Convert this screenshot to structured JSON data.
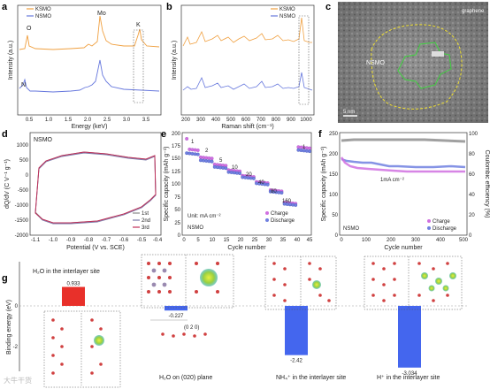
{
  "panels": {
    "a": {
      "label": "a",
      "legend": [
        "KSMO",
        "NSMO"
      ],
      "xlabel": "Energy (keV)",
      "ylabel": "Intensity (a.u.)",
      "xticks": [
        "0.5",
        "1.0",
        "1.5",
        "2.0",
        "2.5",
        "3.0",
        "3.5"
      ],
      "peaks": {
        "O": "O",
        "Mo": "Mo",
        "K": "K",
        "N": "N"
      },
      "colors": {
        "KSMO": "#f0a040",
        "NSMO": "#6677dd"
      }
    },
    "b": {
      "label": "b",
      "legend": [
        "KSMO",
        "NSMO"
      ],
      "xlabel": "Raman shift (cm⁻¹)",
      "ylabel": "Intensity (a.u.)",
      "xticks": [
        "200",
        "300",
        "400",
        "500",
        "600",
        "700",
        "800",
        "900",
        "1000"
      ]
    },
    "c": {
      "label": "c",
      "tag": "graphene",
      "region": "NSMO",
      "scalebar": "5 nm"
    },
    "d": {
      "label": "d",
      "title": "NSMO",
      "xlabel": "Potential (V vs. SCE)",
      "ylabel": "dQ/dV (C V⁻¹ g⁻¹)",
      "xticks": [
        "-1.1",
        "-1.0",
        "-0.9",
        "-0.8",
        "-0.7",
        "-0.6",
        "-0.5",
        "-0.4"
      ],
      "yticks": [
        "1000",
        "500",
        "0",
        "-500",
        "-1000",
        "-1500",
        "-2000"
      ],
      "legend": [
        "1st",
        "2nd",
        "3rd"
      ]
    },
    "e": {
      "label": "e",
      "xlabel": "Cycle number",
      "ylabel": "Specific capacity (mAh g⁻¹)",
      "unit_note": "Unit: mA cm⁻²",
      "name": "NSMO",
      "xticks": [
        "0",
        "5",
        "10",
        "15",
        "20",
        "25",
        "30",
        "35",
        "40",
        "45"
      ],
      "yticks": [
        "0",
        "25",
        "50",
        "75",
        "100",
        "125",
        "150",
        "175",
        "200"
      ],
      "legend": [
        "Charge",
        "Discharge"
      ],
      "rate_labels": [
        "1",
        "2",
        "5",
        "10",
        "20",
        "40",
        "80",
        "160",
        "1"
      ]
    },
    "f": {
      "label": "f",
      "xlabel": "Cycle number",
      "ylabel_left": "Specific capacity (mAh g⁻¹)",
      "ylabel_right": "Coulombic efficiency (%)",
      "rate_note": "1mA cm⁻²",
      "name": "NSMO",
      "xticks": [
        "0",
        "100",
        "200",
        "300",
        "400",
        "500"
      ],
      "yticks_left": [
        "0",
        "50",
        "100",
        "150",
        "200",
        "250"
      ],
      "yticks_right": [
        "0",
        "20",
        "40",
        "60",
        "80",
        "100"
      ],
      "legend": [
        "Charge",
        "Discharge"
      ]
    },
    "g": {
      "label": "g",
      "ylabel": "Binding energy (eV)",
      "yticks": [
        "0",
        "-2"
      ],
      "bars": [
        {
          "label": "H₂O in the interlayer site",
          "value": 0.933,
          "value_text": "0.933",
          "color": "#e8302a"
        },
        {
          "label": "H₂O on (020) plane",
          "value": -0.227,
          "value_text": "-0.227",
          "color": "#4466ee"
        },
        {
          "label": "NH₄⁺ in the interlayer site",
          "value": -2.42,
          "value_text": "-2.42",
          "color": "#4466ee"
        },
        {
          "label": "H⁺ in the interlayer site",
          "value": -3.034,
          "value_text": "-3.034",
          "color": "#4466ee"
        }
      ],
      "plane_note": "(0 2 0)"
    }
  },
  "watermark": "大牛干货"
}
